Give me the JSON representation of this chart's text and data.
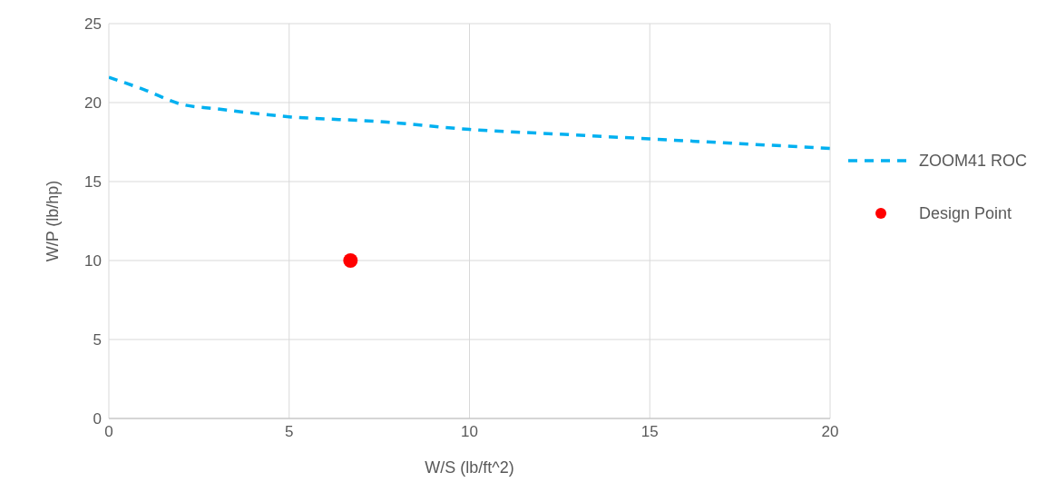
{
  "chart_data": {
    "type": "line",
    "xlabel": "W/S (lb/ft^2)",
    "ylabel": "W/P (lb/hp)",
    "xlim": [
      0,
      20
    ],
    "xticks": [
      0,
      5,
      10,
      15,
      20
    ],
    "ylim": [
      0,
      25
    ],
    "yticks": [
      0,
      5,
      10,
      15,
      20,
      25
    ],
    "grid": true,
    "legend": "right",
    "series": [
      {
        "name": "ZOOM41 ROC",
        "color": "#00b0f0",
        "line_style": "dashed",
        "marker": "none",
        "x": [
          0,
          1,
          2,
          3,
          5,
          7.5,
          10,
          12.5,
          15,
          17.5,
          20
        ],
        "values": [
          21.6,
          20.8,
          19.9,
          19.6,
          19.1,
          18.8,
          18.3,
          18.0,
          17.7,
          17.4,
          17.1
        ]
      },
      {
        "name": "Design Point",
        "type": "scatter",
        "color": "#ff0000",
        "marker": "circle",
        "x": [
          6.7
        ],
        "values": [
          10
        ]
      }
    ]
  }
}
